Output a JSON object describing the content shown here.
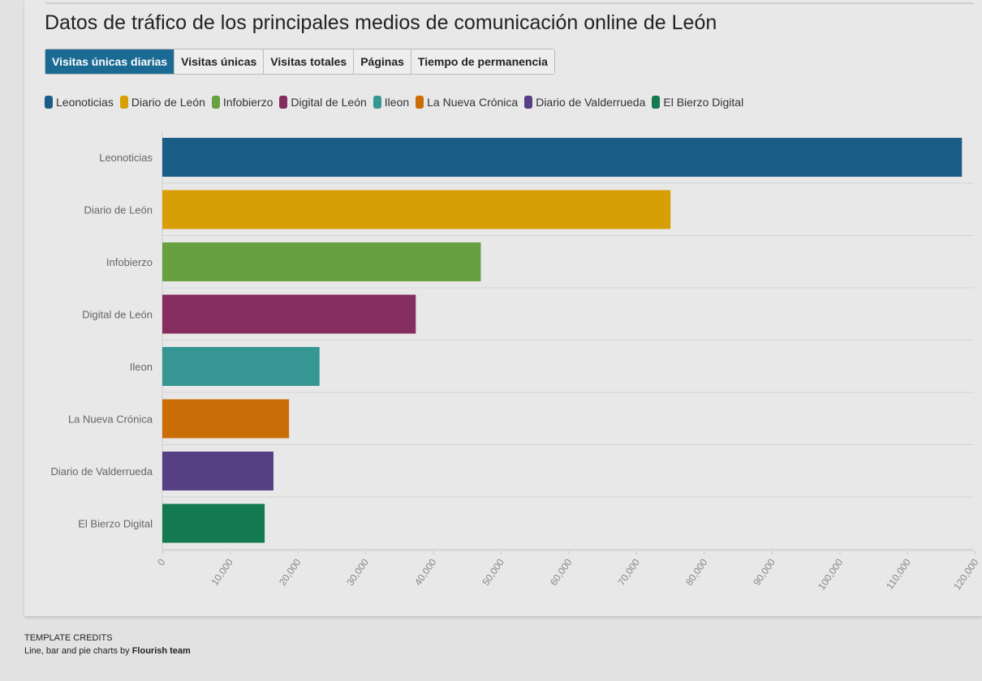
{
  "title": "Datos de tráfico de los principales medios de comunicación online de León",
  "tabs": [
    {
      "label": "Visitas únicas diarias",
      "active": true
    },
    {
      "label": "Visitas únicas"
    },
    {
      "label": "Visitas totales"
    },
    {
      "label": "Páginas"
    },
    {
      "label": "Tiempo de permanencia"
    }
  ],
  "credits": {
    "heading": "TEMPLATE CREDITS",
    "text": "Line, bar and pie charts by ",
    "author": "Flourish team"
  },
  "chart_data": {
    "type": "bar",
    "orientation": "horizontal",
    "categories": [
      "Leonoticias",
      "Diario de León",
      "Infobierzo",
      "Digital de León",
      "Ileon",
      "La Nueva Crónica",
      "Diario de Valderrueda",
      "El Bierzo Digital"
    ],
    "values": [
      118000,
      75000,
      47000,
      37400,
      23200,
      18700,
      16400,
      15100
    ],
    "colors": [
      "#1c5d87",
      "#d89e05",
      "#67a040",
      "#842d5e",
      "#369694",
      "#cb6d06",
      "#573f84",
      "#137a50"
    ],
    "xlim": [
      0,
      120000
    ],
    "ticks": [
      0,
      10000,
      20000,
      30000,
      40000,
      50000,
      60000,
      70000,
      80000,
      90000,
      100000,
      110000,
      120000
    ],
    "tick_labels": [
      "0",
      "10,000",
      "20,000",
      "30,000",
      "40,000",
      "50,000",
      "60,000",
      "70,000",
      "80,000",
      "90,000",
      "100,000",
      "110,000",
      "120,000"
    ],
    "legend_position": "top-left",
    "grid": true
  }
}
